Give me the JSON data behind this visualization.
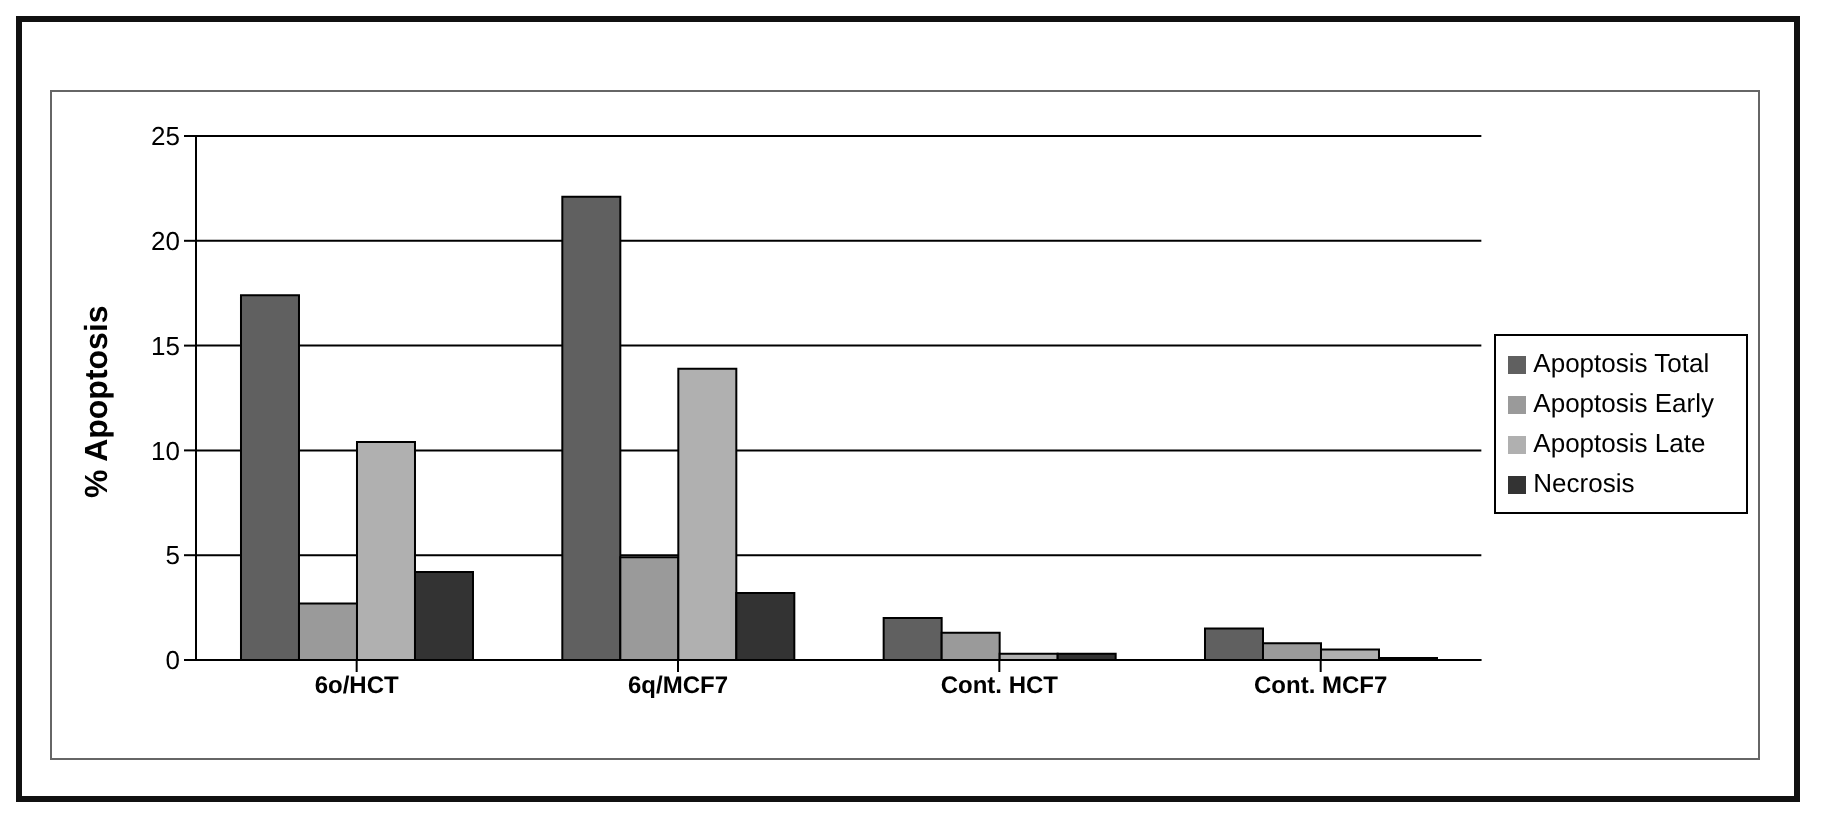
{
  "chart_data": {
    "type": "bar",
    "ylabel": "%  Apoptosis",
    "categories": [
      "6o/HCT",
      "6q/MCF7",
      "Cont. HCT",
      "Cont. MCF7"
    ],
    "series": [
      {
        "name": "Apoptosis Total",
        "color": "#606060",
        "values": [
          17.4,
          22.1,
          2.0,
          1.5
        ]
      },
      {
        "name": "Apoptosis Early",
        "color": "#9a9a9a",
        "values": [
          2.7,
          4.9,
          1.3,
          0.8
        ]
      },
      {
        "name": "Apoptosis Late",
        "color": "#b0b0b0",
        "values": [
          10.4,
          13.9,
          0.3,
          0.5
        ]
      },
      {
        "name": "Necrosis",
        "color": "#333333",
        "values": [
          4.2,
          3.2,
          0.3,
          0.1
        ]
      }
    ],
    "ylim": [
      0,
      25
    ],
    "yticks": [
      0,
      5,
      10,
      15,
      20,
      25
    ],
    "grid": "y",
    "legend": "right"
  }
}
